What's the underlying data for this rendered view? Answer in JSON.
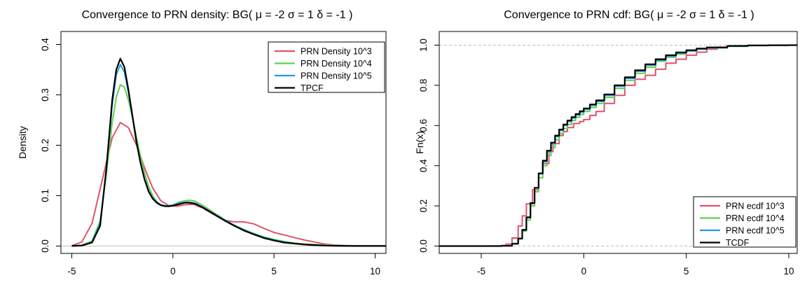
{
  "colors": {
    "red": "#DF536B",
    "green": "#61D04F",
    "blue": "#2297E6",
    "black": "#000000",
    "grid": "#BEBEBE"
  },
  "chart_data": [
    {
      "type": "line",
      "title": "Convergence to PRN density: BG( μ = -2 σ = 1 δ = -1 )",
      "xlabel": "",
      "ylabel": "Density",
      "xlim": [
        -5,
        10
      ],
      "ylim": [
        0,
        0.4
      ],
      "xticks": [
        "-5",
        "0",
        "5",
        "10"
      ],
      "yticks": [
        "0.0",
        "0.1",
        "0.2",
        "0.3",
        "0.4"
      ],
      "legend_position": "top-right",
      "series": [
        {
          "name": "PRN Density 10^3",
          "color": "#DF536B",
          "x": [
            -5,
            -4.5,
            -4,
            -3.5,
            -3,
            -2.6,
            -2.2,
            -1.8,
            -1.4,
            -1.0,
            -0.6,
            -0.2,
            0.2,
            0.6,
            1.0,
            1.5,
            2.0,
            2.5,
            3.0,
            3.5,
            4.0,
            4.5,
            5.0,
            5.5,
            6.0,
            6.5,
            7.0,
            7.5,
            8.0,
            8.5,
            9.0,
            9.5,
            10
          ],
          "y": [
            0.001,
            0.008,
            0.045,
            0.13,
            0.215,
            0.245,
            0.235,
            0.2,
            0.155,
            0.115,
            0.09,
            0.08,
            0.079,
            0.082,
            0.083,
            0.075,
            0.063,
            0.052,
            0.048,
            0.048,
            0.044,
            0.035,
            0.027,
            0.022,
            0.017,
            0.012,
            0.008,
            0.004,
            0.002,
            0.001,
            0.0005,
            0.0002,
            0.0001
          ]
        },
        {
          "name": "PRN Density 10^4",
          "color": "#61D04F",
          "x": [
            -5,
            -4.5,
            -4,
            -3.6,
            -3.3,
            -3.0,
            -2.8,
            -2.6,
            -2.4,
            -2.2,
            -2.0,
            -1.8,
            -1.6,
            -1.4,
            -1.2,
            -1.0,
            -0.8,
            -0.6,
            -0.4,
            -0.2,
            0.0,
            0.3,
            0.6,
            0.8,
            1.1,
            1.5,
            2.0,
            2.5,
            3.0,
            3.5,
            4.0,
            4.5,
            5.0,
            5.5,
            6.0,
            6.5,
            7.0,
            7.5,
            8.0,
            9.0,
            10
          ],
          "y": [
            0.0005,
            0.002,
            0.01,
            0.05,
            0.14,
            0.245,
            0.295,
            0.32,
            0.315,
            0.29,
            0.255,
            0.215,
            0.178,
            0.145,
            0.118,
            0.1,
            0.088,
            0.082,
            0.08,
            0.08,
            0.082,
            0.087,
            0.09,
            0.091,
            0.089,
            0.08,
            0.067,
            0.054,
            0.042,
            0.033,
            0.025,
            0.018,
            0.013,
            0.009,
            0.006,
            0.004,
            0.003,
            0.002,
            0.001,
            0.0004,
            0.0001
          ]
        },
        {
          "name": "PRN Density 10^5",
          "color": "#2297E6",
          "x": [
            -5,
            -4.5,
            -4,
            -3.6,
            -3.3,
            -3.0,
            -2.8,
            -2.6,
            -2.4,
            -2.2,
            -2.0,
            -1.8,
            -1.6,
            -1.4,
            -1.2,
            -1.0,
            -0.8,
            -0.6,
            -0.4,
            -0.2,
            0.0,
            0.3,
            0.6,
            0.8,
            1.1,
            1.5,
            2.0,
            2.5,
            3.0,
            3.5,
            4.0,
            4.5,
            5.0,
            5.5,
            6.0,
            6.5,
            7.0,
            7.5,
            8.0,
            9.0,
            10
          ],
          "y": [
            0.0003,
            0.001,
            0.008,
            0.045,
            0.15,
            0.28,
            0.34,
            0.36,
            0.345,
            0.305,
            0.255,
            0.205,
            0.165,
            0.133,
            0.11,
            0.095,
            0.087,
            0.082,
            0.08,
            0.08,
            0.081,
            0.085,
            0.087,
            0.087,
            0.085,
            0.077,
            0.065,
            0.053,
            0.042,
            0.032,
            0.024,
            0.017,
            0.012,
            0.008,
            0.005,
            0.003,
            0.002,
            0.001,
            0.0006,
            0.0002,
            0.0001
          ]
        },
        {
          "name": "TPCF",
          "color": "#000000",
          "x": [
            -5,
            -4.5,
            -4,
            -3.6,
            -3.3,
            -3.0,
            -2.8,
            -2.6,
            -2.4,
            -2.2,
            -2.0,
            -1.8,
            -1.6,
            -1.4,
            -1.2,
            -1.0,
            -0.8,
            -0.6,
            -0.4,
            -0.2,
            0.0,
            0.3,
            0.6,
            0.8,
            1.1,
            1.5,
            2.0,
            2.5,
            3.0,
            3.5,
            4.0,
            4.5,
            5.0,
            5.5,
            6.0,
            6.5,
            7.0,
            7.5,
            8.0,
            9.0,
            10
          ],
          "y": [
            0.0002,
            0.001,
            0.007,
            0.04,
            0.15,
            0.29,
            0.35,
            0.372,
            0.355,
            0.31,
            0.258,
            0.206,
            0.165,
            0.132,
            0.108,
            0.094,
            0.086,
            0.081,
            0.079,
            0.079,
            0.08,
            0.083,
            0.086,
            0.086,
            0.084,
            0.076,
            0.064,
            0.052,
            0.041,
            0.031,
            0.023,
            0.016,
            0.011,
            0.007,
            0.005,
            0.003,
            0.002,
            0.001,
            0.0005,
            0.0002,
            0.0001
          ]
        }
      ]
    },
    {
      "type": "line",
      "title": "Convergence to PRN cdf: BG( μ = -2 σ = 1 δ = -1 )",
      "xlabel": "",
      "ylabel": "Fn(x)",
      "xlim": [
        -5,
        10
      ],
      "ylim": [
        0,
        1
      ],
      "xticks": [
        "-5",
        "0",
        "5",
        "10"
      ],
      "yticks": [
        "0.0",
        "0.2",
        "0.4",
        "0.6",
        "0.8",
        "1.0"
      ],
      "reference_lines": [
        0,
        1
      ],
      "legend_position": "bottom-right",
      "series": [
        {
          "name": "PRN ecdf 10^3",
          "color": "#DF536B",
          "x": [
            -5,
            -4,
            -3.8,
            -3.5,
            -3.2,
            -3.0,
            -2.8,
            -2.5,
            -2.2,
            -2.0,
            -1.7,
            -1.5,
            -1.2,
            -1.0,
            -0.8,
            -0.5,
            -0.2,
            0.0,
            0.3,
            0.6,
            1.0,
            1.5,
            2.0,
            2.5,
            3.0,
            3.5,
            4.0,
            4.5,
            5.0,
            5.5,
            6.0,
            6.5,
            7.0,
            7.5,
            8.0,
            9.0,
            10
          ],
          "y": [
            0.0,
            0.003,
            0.01,
            0.04,
            0.1,
            0.15,
            0.21,
            0.28,
            0.36,
            0.41,
            0.47,
            0.51,
            0.55,
            0.57,
            0.59,
            0.61,
            0.62,
            0.63,
            0.65,
            0.67,
            0.71,
            0.75,
            0.8,
            0.83,
            0.85,
            0.88,
            0.91,
            0.93,
            0.95,
            0.965,
            0.98,
            0.99,
            0.995,
            0.997,
            0.999,
            1.0,
            1.0
          ]
        },
        {
          "name": "PRN ecdf 10^4",
          "color": "#61D04F",
          "x": [
            -5,
            -4.5,
            -4,
            -3.5,
            -3.2,
            -3.0,
            -2.8,
            -2.6,
            -2.4,
            -2.2,
            -2.0,
            -1.8,
            -1.6,
            -1.4,
            -1.2,
            -1.0,
            -0.8,
            -0.6,
            -0.4,
            -0.2,
            0.0,
            0.3,
            0.6,
            1.0,
            1.5,
            2.0,
            2.5,
            3.0,
            3.5,
            4.0,
            4.5,
            5.0,
            5.5,
            6.0,
            7.0,
            8.0,
            9.0,
            10
          ],
          "y": [
            0.0,
            0.0002,
            0.002,
            0.013,
            0.037,
            0.075,
            0.13,
            0.2,
            0.27,
            0.34,
            0.4,
            0.45,
            0.49,
            0.53,
            0.56,
            0.585,
            0.605,
            0.625,
            0.64,
            0.655,
            0.67,
            0.69,
            0.71,
            0.74,
            0.785,
            0.825,
            0.86,
            0.89,
            0.92,
            0.94,
            0.955,
            0.97,
            0.98,
            0.986,
            0.994,
            0.998,
            0.9995,
            1.0
          ]
        },
        {
          "name": "PRN ecdf 10^5",
          "color": "#2297E6",
          "x": [
            -5,
            -4.5,
            -4,
            -3.5,
            -3.2,
            -3.0,
            -2.8,
            -2.6,
            -2.4,
            -2.2,
            -2.0,
            -1.8,
            -1.6,
            -1.4,
            -1.2,
            -1.0,
            -0.8,
            -0.6,
            -0.4,
            -0.2,
            0.0,
            0.3,
            0.6,
            1.0,
            1.5,
            2.0,
            2.5,
            3.0,
            3.5,
            4.0,
            4.5,
            5.0,
            5.5,
            6.0,
            7.0,
            8.0,
            9.0,
            10
          ],
          "y": [
            0.0,
            0.0001,
            0.0015,
            0.012,
            0.038,
            0.082,
            0.145,
            0.215,
            0.29,
            0.36,
            0.42,
            0.47,
            0.51,
            0.545,
            0.575,
            0.6,
            0.62,
            0.637,
            0.652,
            0.666,
            0.68,
            0.7,
            0.72,
            0.75,
            0.795,
            0.835,
            0.87,
            0.9,
            0.925,
            0.945,
            0.96,
            0.972,
            0.981,
            0.987,
            0.995,
            0.998,
            0.9995,
            1.0
          ]
        },
        {
          "name": "TCDF",
          "color": "#000000",
          "x": [
            -5,
            -4.5,
            -4,
            -3.5,
            -3.2,
            -3.0,
            -2.8,
            -2.6,
            -2.4,
            -2.2,
            -2.0,
            -1.8,
            -1.6,
            -1.4,
            -1.2,
            -1.0,
            -0.8,
            -0.6,
            -0.4,
            -0.2,
            0.0,
            0.3,
            0.6,
            1.0,
            1.5,
            2.0,
            2.5,
            3.0,
            3.5,
            4.0,
            4.5,
            5.0,
            5.5,
            6.0,
            7.0,
            8.0,
            9.0,
            10
          ],
          "y": [
            0.0,
            0.0001,
            0.0012,
            0.011,
            0.037,
            0.08,
            0.142,
            0.214,
            0.29,
            0.362,
            0.425,
            0.475,
            0.515,
            0.55,
            0.58,
            0.605,
            0.625,
            0.642,
            0.657,
            0.671,
            0.685,
            0.705,
            0.725,
            0.755,
            0.8,
            0.84,
            0.875,
            0.905,
            0.93,
            0.95,
            0.964,
            0.975,
            0.983,
            0.989,
            0.996,
            0.9985,
            0.9996,
            1.0
          ]
        }
      ]
    }
  ]
}
